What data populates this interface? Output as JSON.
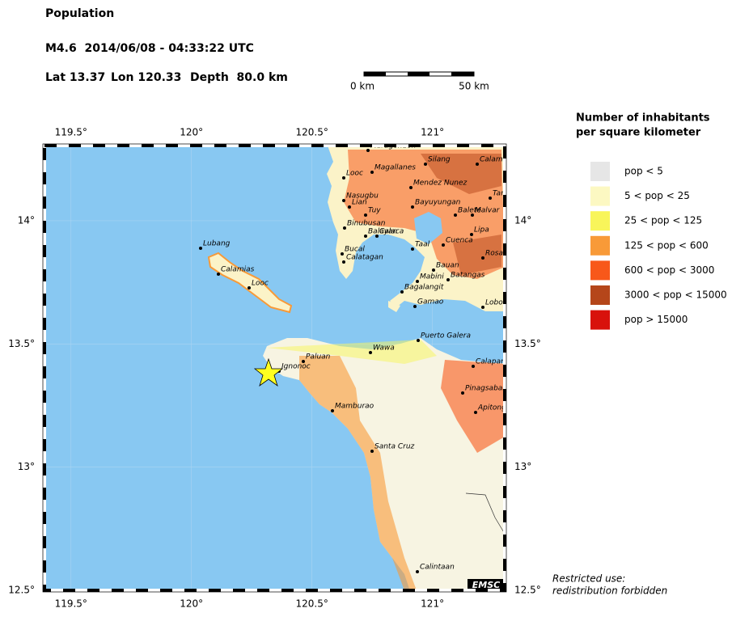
{
  "header": {
    "title": "Population",
    "event": "M4.6  2014/06/08 - 04:33:22 UTC",
    "lat": "Lat 13.37",
    "lon": "Lon 120.33",
    "depth": "Depth  80.0 km"
  },
  "scale_bar": {
    "start": "0 km",
    "end": "50 km"
  },
  "map": {
    "xlim": [
      119.39,
      121.3
    ],
    "ylim": [
      12.5,
      14.305
    ],
    "xticks": [
      {
        "value": 119.5,
        "label": "119.5°"
      },
      {
        "value": 120,
        "label": "120°"
      },
      {
        "value": 120.5,
        "label": "120.5°"
      },
      {
        "value": 121,
        "label": "121°"
      }
    ],
    "yticks": [
      {
        "value": 14,
        "label": "14°"
      },
      {
        "value": 13.5,
        "label": "13.5°"
      },
      {
        "value": 13,
        "label": "13°"
      },
      {
        "value": 12.5,
        "label": "12.5°"
      }
    ],
    "places": [
      "Maragondon",
      "Silang",
      "Calamba",
      "Magallanes",
      "Looc",
      "Mendez Nunez",
      "Nasugbu",
      "Lian",
      "Bayuyungan",
      "Tanauan",
      "Tuy",
      "Balete",
      "Malvar",
      "Binubusan",
      "Balayan",
      "Calaca",
      "Lipa",
      "Taal",
      "Cuenca",
      "Bucal",
      "Calatagan",
      "Rosario",
      "Bauan",
      "Batangas",
      "Mabini",
      "Bagalangit",
      "Gamao",
      "Lobo",
      "Lubang",
      "Calamias",
      "Looc",
      "Puerto Galera",
      "Wawa",
      "Paluan",
      "Ignonoc",
      "Calapan",
      "Mamburao",
      "Pinagsabangan",
      "Apitong",
      "Santa Cruz",
      "Calintaan"
    ],
    "credit": "EMSC"
  },
  "legend": {
    "title_lines": [
      "Number of inhabitants",
      "per square kilometer"
    ],
    "items": [
      {
        "label": "pop < 5",
        "color": "#e6e6e6"
      },
      {
        "label": "5 < pop < 25",
        "color": "#fcf8c2"
      },
      {
        "label": "25 < pop < 125",
        "color": "#f8f55a"
      },
      {
        "label": "125 < pop < 600",
        "color": "#f89a38"
      },
      {
        "label": "600 < pop < 3000",
        "color": "#f8581a"
      },
      {
        "label": "3000 < pop < 15000",
        "color": "#b5461a"
      },
      {
        "label": "pop > 15000",
        "color": "#d8120c"
      }
    ]
  },
  "notice": [
    "Restricted use:",
    "redistribution forbidden"
  ]
}
